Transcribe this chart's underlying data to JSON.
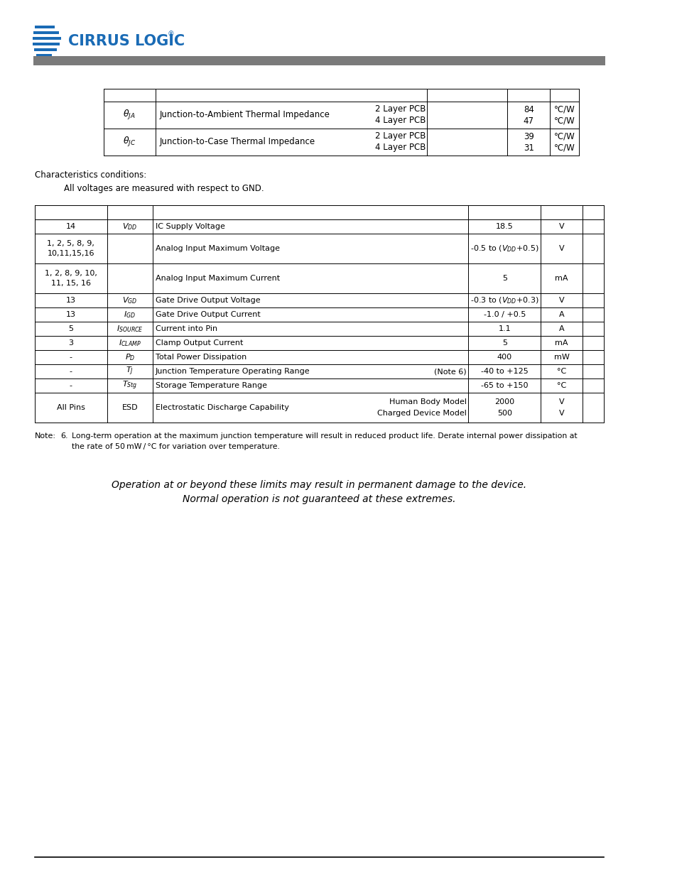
{
  "bg_color": "#ffffff",
  "header_bar_color": "#7a7a7a",
  "table1_rows": [
    {
      "sym": "$\\theta_{JA}$",
      "desc": "Junction-to-Ambient Thermal Impedance",
      "pcb_a": "2 Layer PCB",
      "pcb_b": "4 Layer PCB",
      "val_a": "84",
      "val_b": "47",
      "unit_a": "°C/W",
      "unit_b": "°C/W"
    },
    {
      "sym": "$\\theta_{JC}$",
      "desc": "Junction-to-Case Thermal Impedance",
      "pcb_a": "2 Layer PCB",
      "pcb_b": "4 Layer PCB",
      "val_a": "39",
      "val_b": "31",
      "unit_a": "°C/W",
      "unit_b": "°C/W"
    }
  ],
  "char_cond_text": "Characteristics conditions:",
  "char_cond_sub": "All voltages are measured with respect to GND.",
  "table2_header_empty": true,
  "table2_rows": [
    {
      "col_pin": "14",
      "col_sym_latex": "$V_{DD}$",
      "col_desc": "IC Supply Voltage",
      "col_note": "",
      "col_val": "18.5",
      "col_unit": "V",
      "multiline": false
    },
    {
      "col_pin": "1, 2, 5, 8, 9,\n10,11,15,16",
      "col_sym_latex": "",
      "col_desc": "Analog Input Maximum Voltage",
      "col_note": "",
      "col_val": "-0.5 to ($V_{DD}$+0.5)",
      "col_unit": "V",
      "multiline": true
    },
    {
      "col_pin": "1, 2, 8, 9, 10,\n11, 15, 16",
      "col_sym_latex": "",
      "col_desc": "Analog Input Maximum Current",
      "col_note": "",
      "col_val": "5",
      "col_unit": "mA",
      "multiline": true
    },
    {
      "col_pin": "13",
      "col_sym_latex": "$V_{GD}$",
      "col_desc": "Gate Drive Output Voltage",
      "col_note": "",
      "col_val": "-0.3 to ($V_{DD}$+0.3)",
      "col_unit": "V",
      "multiline": false
    },
    {
      "col_pin": "13",
      "col_sym_latex": "$I_{GD}$",
      "col_desc": "Gate Drive Output Current",
      "col_note": "",
      "col_val": "-1.0 / +0.5",
      "col_unit": "A",
      "multiline": false
    },
    {
      "col_pin": "5",
      "col_sym_latex": "$I_{SOURCE}$",
      "col_desc": "Current into Pin",
      "col_note": "",
      "col_val": "1.1",
      "col_unit": "A",
      "multiline": false
    },
    {
      "col_pin": "3",
      "col_sym_latex": "$I_{CLAMP}$",
      "col_desc": "Clamp Output Current",
      "col_note": "",
      "col_val": "5",
      "col_unit": "mA",
      "multiline": false
    },
    {
      "col_pin": "-",
      "col_sym_latex": "$P_{D}$",
      "col_desc": "Total Power Dissipation",
      "col_note": "",
      "col_val": "400",
      "col_unit": "mW",
      "multiline": false
    },
    {
      "col_pin": "-",
      "col_sym_latex": "$T_{J}$",
      "col_desc": "Junction Temperature Operating Range",
      "col_note": "(Note 6)",
      "col_val": "-40 to +125",
      "col_unit": "°C",
      "multiline": false
    },
    {
      "col_pin": "-",
      "col_sym_latex": "$T_{Stg}$",
      "col_desc": "Storage Temperature Range",
      "col_note": "",
      "col_val": "-65 to +150",
      "col_unit": "°C",
      "multiline": false
    },
    {
      "col_pin": "All Pins",
      "col_sym_latex": "ESD",
      "col_desc": "Electrostatic Discharge Capability",
      "col_note": "Human Body Model\nCharged Device Model",
      "col_val": "2000\n500",
      "col_unit": "V\nV",
      "multiline": true
    }
  ],
  "note_line1": "Note:      6.    Long-term operation at the maximum junction temperature will result in reduced product life. Derate internal power dissipation at",
  "note_line2": "                      the rate of 50 mW / °C for variation over temperature.",
  "bottom_text_line1": "Operation at or beyond these limits may result in permanent damage to the device.",
  "bottom_text_line2": "Normal operation is not guaranteed at these extremes."
}
